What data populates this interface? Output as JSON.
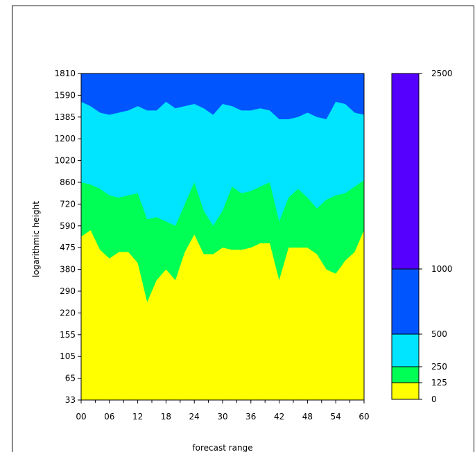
{
  "chart_data": {
    "type": "area",
    "xlabel": "forecast range",
    "ylabel": "logarithmic height",
    "x_ticks": [
      "00",
      "06",
      "12",
      "18",
      "24",
      "30",
      "36",
      "42",
      "48",
      "54",
      "60"
    ],
    "y_ticks": [
      "33",
      "65",
      "105",
      "155",
      "220",
      "290",
      "380",
      "475",
      "590",
      "720",
      "860",
      "1020",
      "1200",
      "1385",
      "1590",
      "1810"
    ],
    "x": [
      0,
      2,
      4,
      6,
      8,
      10,
      12,
      14,
      16,
      18,
      20,
      22,
      24,
      26,
      28,
      30,
      32,
      34,
      36,
      38,
      40,
      42,
      44,
      46,
      48,
      50,
      52,
      54,
      56,
      58,
      60
    ],
    "series": [
      {
        "name": "0-125",
        "color": "#ffff00",
        "boundary_level_index": [
          7.5,
          7.8,
          6.9,
          6.5,
          6.8,
          6.8,
          6.3,
          4.5,
          5.5,
          6.0,
          5.5,
          6.8,
          7.6,
          6.7,
          6.7,
          7.0,
          6.9,
          6.9,
          7.0,
          7.2,
          7.2,
          5.5,
          7.0,
          7.0,
          7.0,
          6.7,
          6.0,
          5.8,
          6.4,
          6.8,
          7.8
        ]
      },
      {
        "name": "125-250",
        "color": "#00ff55",
        "boundary_level_index": [
          10.0,
          9.9,
          9.7,
          9.4,
          9.3,
          9.4,
          9.5,
          8.3,
          8.4,
          8.2,
          8.0,
          9.0,
          10.0,
          8.7,
          8.0,
          8.7,
          9.8,
          9.5,
          9.6,
          9.8,
          10.0,
          8.2,
          9.3,
          9.7,
          9.3,
          8.8,
          9.2,
          9.4,
          9.5,
          9.8,
          10.1
        ]
      },
      {
        "name": "250-500",
        "color": "#00e5ff",
        "boundary_level_index": [
          13.7,
          13.5,
          13.2,
          13.1,
          13.2,
          13.3,
          13.5,
          13.3,
          13.3,
          13.7,
          13.4,
          13.5,
          13.6,
          13.4,
          13.1,
          13.6,
          13.5,
          13.3,
          13.3,
          13.4,
          13.3,
          12.9,
          12.9,
          13.0,
          13.2,
          13.0,
          12.9,
          13.7,
          13.6,
          13.2,
          13.1
        ]
      },
      {
        "name": "500-1000",
        "color": "#0055ff",
        "boundary_level_index": [
          15,
          15,
          15,
          15,
          15,
          15,
          15,
          15,
          15,
          15,
          15,
          15,
          15,
          15,
          15,
          15,
          15,
          15,
          15,
          15,
          15,
          15,
          15,
          15,
          15,
          15,
          15,
          15,
          15,
          15,
          15
        ]
      }
    ],
    "colorbar": {
      "ticks": [
        "0",
        "125",
        "250",
        "500",
        "1000",
        "2500"
      ],
      "colors": [
        "#ffff00",
        "#00ff55",
        "#00e5ff",
        "#0055ff",
        "#5500ff"
      ]
    },
    "grid": false,
    "legend": "colorbar-right"
  }
}
